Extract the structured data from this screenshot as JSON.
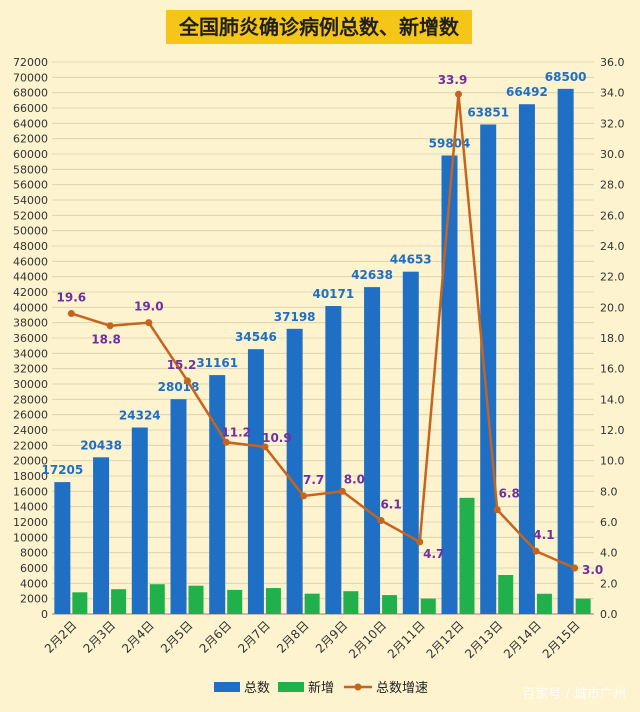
{
  "chart_data": {
    "type": "bar",
    "title": "全国肺炎确诊病例总数、新增数",
    "categories": [
      "2月2日",
      "2月3日",
      "2月4日",
      "2月5日",
      "2月6日",
      "2月7日",
      "2月8日",
      "2月9日",
      "2月10日",
      "2月11日",
      "2月12日",
      "2月13日",
      "2月14日",
      "2月15日"
    ],
    "series": [
      {
        "name": "总数",
        "type": "bar",
        "axis": "left",
        "color": "#1f6fc5",
        "values": [
          17205,
          20438,
          24324,
          28018,
          31161,
          34546,
          37198,
          40171,
          42638,
          44653,
          59804,
          63851,
          66492,
          68500
        ],
        "labels": [
          "17205",
          "20438",
          "24324",
          "28018",
          "31161",
          "34546",
          "37198",
          "40171",
          "42638",
          "44653",
          "59804",
          "63851",
          "66492",
          "68500"
        ]
      },
      {
        "name": "新增",
        "type": "bar",
        "axis": "left",
        "color": "#21b14c",
        "values": [
          2829,
          3235,
          3887,
          3694,
          3143,
          3385,
          2652,
          2973,
          2467,
          2015,
          15152,
          5090,
          2641,
          2009
        ]
      },
      {
        "name": "总数增速",
        "type": "line",
        "axis": "right",
        "color": "#c5641e",
        "values": [
          19.6,
          18.8,
          19.0,
          15.2,
          11.2,
          10.9,
          7.7,
          8.0,
          6.1,
          4.7,
          33.9,
          6.8,
          4.1,
          3.0
        ],
        "labels": [
          "19.6",
          "18.8",
          "19.0",
          "15.2",
          "11.2",
          "10.9",
          "7.7",
          "8.0",
          "6.1",
          "4.7",
          "33.9",
          "6.8",
          "4.1",
          "3.0"
        ]
      }
    ],
    "ylim": [
      0,
      72000
    ],
    "y2lim": [
      0,
      36
    ],
    "yticks": [
      "0",
      "2000",
      "4000",
      "6000",
      "8000",
      "10000",
      "12000",
      "14000",
      "16000",
      "18000",
      "20000",
      "22000",
      "24000",
      "26000",
      "28000",
      "30000",
      "32000",
      "34000",
      "36000",
      "38000",
      "40000",
      "42000",
      "44000",
      "46000",
      "48000",
      "50000",
      "52000",
      "54000",
      "56000",
      "58000",
      "60000",
      "62000",
      "64000",
      "66000",
      "68000",
      "70000",
      "72000"
    ],
    "y2ticks": [
      "0.0",
      "2.0",
      "4.0",
      "6.0",
      "8.0",
      "10.0",
      "12.0",
      "14.0",
      "16.0",
      "18.0",
      "20.0",
      "22.0",
      "24.0",
      "26.0",
      "28.0",
      "30.0",
      "32.0",
      "34.0",
      "36.0"
    ],
    "grid": true,
    "legend_position": "bottom"
  },
  "watermark": "百家号 / 城市广州",
  "colors": {
    "background": "#fdf3cf",
    "title_bg": "#f5c518",
    "bar_total": "#1f6fc5",
    "bar_new": "#21b14c",
    "line": "#c5641e",
    "line_label": "#7030a0",
    "bar_label": "#1f6fc5"
  }
}
